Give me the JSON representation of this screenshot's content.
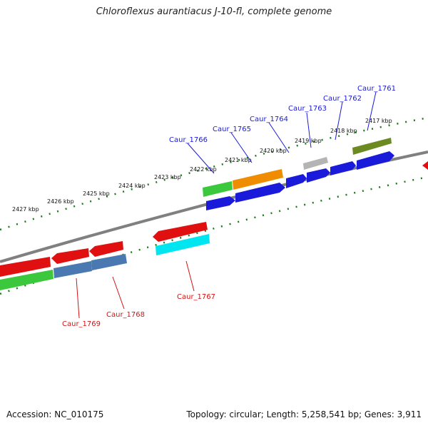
{
  "title": "Chloroflexus aurantiacus J-10-fl, complete genome",
  "accession": "Accession: NC_010175",
  "topology": "Topology: circular; Length: 5,258,541 bp; Genes: 3,911",
  "scale_labels": [
    "2417 kbp",
    "2418 kbp",
    "2419 kbp",
    "2420 kbp",
    "2421 kbp",
    "2422 kbp",
    "2423 kbp",
    "2424 kbp",
    "2425 kbp",
    "2426 kbp",
    "2427 kbp"
  ],
  "gene_labels_top": [
    "Caur_1761",
    "Caur_1762",
    "Caur_1763",
    "Caur_1764",
    "Caur_1765",
    "Caur_1766"
  ],
  "gene_labels_bottom": [
    "Caur_1767",
    "Caur_1768",
    "Caur_1769"
  ],
  "colors": {
    "blue_gene": "#1a1adb",
    "red_gene": "#e01010",
    "green_gene": "#3cc83c",
    "olive_gene": "#6b8a22",
    "orange_gene": "#f08c00",
    "gray_gene": "#b4b4b4",
    "cyan_gene": "#00e6f0",
    "steel_gene": "#4a78b0",
    "scale_ticks": "#1d7a1d",
    "backbone": "#808080"
  }
}
